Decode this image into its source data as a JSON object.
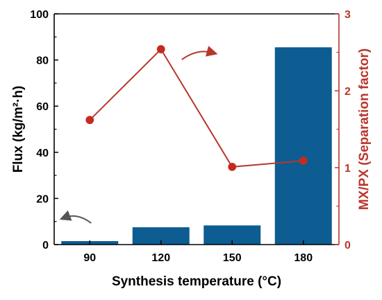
{
  "colors": {
    "bar": "#0d5c92",
    "line": "#b8362c",
    "point": "#c8281e",
    "axis_left": "#000000",
    "axis_right": "#b8362c",
    "arrow_left": "#555555"
  },
  "chart_data": {
    "type": "bar",
    "categories": [
      "90",
      "120",
      "150",
      "180"
    ],
    "xlabel": "Synthesis temperature (°C)",
    "ylabel": "Flux (kg/m²·h)",
    "y2label": "MX/PX (Separation factor)",
    "ylim": [
      0,
      100
    ],
    "y2lim": [
      0,
      3
    ],
    "yticks": [
      "0",
      "20",
      "40",
      "60",
      "80",
      "100"
    ],
    "y2ticks": [
      "0",
      "1",
      "2",
      "3"
    ],
    "grid": false,
    "legend": "none",
    "series": [
      {
        "kind": "bar",
        "axis": "left",
        "values": [
          1.5,
          7.5,
          8.3,
          85.5
        ]
      },
      {
        "kind": "line",
        "axis": "right",
        "values": [
          1.62,
          2.54,
          1.01,
          1.09
        ]
      }
    ],
    "annotations": [
      {
        "type": "arrow",
        "target": "left-axis",
        "category_index": 0
      },
      {
        "type": "arrow",
        "target": "right-axis",
        "category_index": 1
      }
    ]
  }
}
